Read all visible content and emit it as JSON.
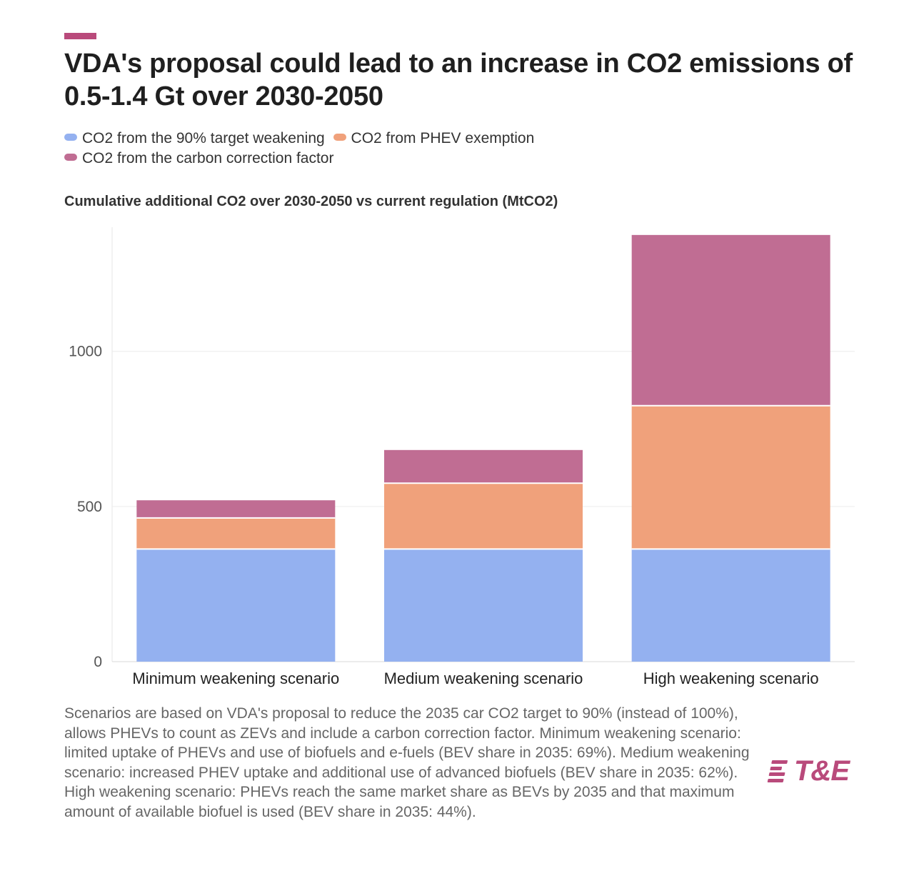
{
  "header": {
    "title": "VDA's proposal could lead to an increase in CO2 emissions of 0.5-1.4 Gt over 2030-2050",
    "accent_color": "#b94a7b"
  },
  "legend": {
    "items": [
      {
        "label": "CO2 from the 90% target weakening",
        "color": "#94b1f0"
      },
      {
        "label": "CO2 from PHEV exemption",
        "color": "#f0a17b"
      },
      {
        "label": "CO2 from the carbon correction factor",
        "color": "#c06d93"
      }
    ]
  },
  "chart_data": {
    "type": "bar",
    "stacked": true,
    "title": "VDA's proposal could lead to an increase in CO2 emissions of 0.5-1.4 Gt over 2030-2050",
    "subtitle": "Cumulative additional CO2 over 2030-2050 vs current regulation (MtCO2)",
    "xlabel": "",
    "ylabel": "",
    "ylim": [
      0,
      1400
    ],
    "yticks": [
      0,
      500,
      1000
    ],
    "grid": true,
    "legend_position": "top-left",
    "categories": [
      "Minimum weakening scenario",
      "Medium weakening scenario",
      "High weakening scenario"
    ],
    "series": [
      {
        "name": "CO2 from the 90% target weakening",
        "color": "#94b1f0",
        "values": [
          363,
          363,
          363
        ]
      },
      {
        "name": "CO2 from PHEV exemption",
        "color": "#f0a17b",
        "values": [
          100,
          212,
          462
        ]
      },
      {
        "name": "CO2 from the carbon correction factor",
        "color": "#c06d93",
        "values": [
          57,
          107,
          550
        ]
      }
    ]
  },
  "footnote": {
    "text": "Scenarios are based on VDA's proposal to reduce the 2035 car CO2 target to 90% (instead of 100%), allows PHEVs to count as ZEVs and include a carbon correction factor. Minimum weakening scenario: limited uptake of PHEVs and use of biofuels and e-fuels (BEV share in 2035: 69%). Medium weakening scenario: increased PHEV uptake and additional use of advanced biofuels (BEV share in 2035: 62%). High weakening scenario: PHEVs reach the same market share as BEVs by 2035 and that maximum amount of available biofuel is used (BEV share in 2035: 44%)."
  },
  "logo": {
    "text": "T&E",
    "color": "#b94a7b"
  }
}
